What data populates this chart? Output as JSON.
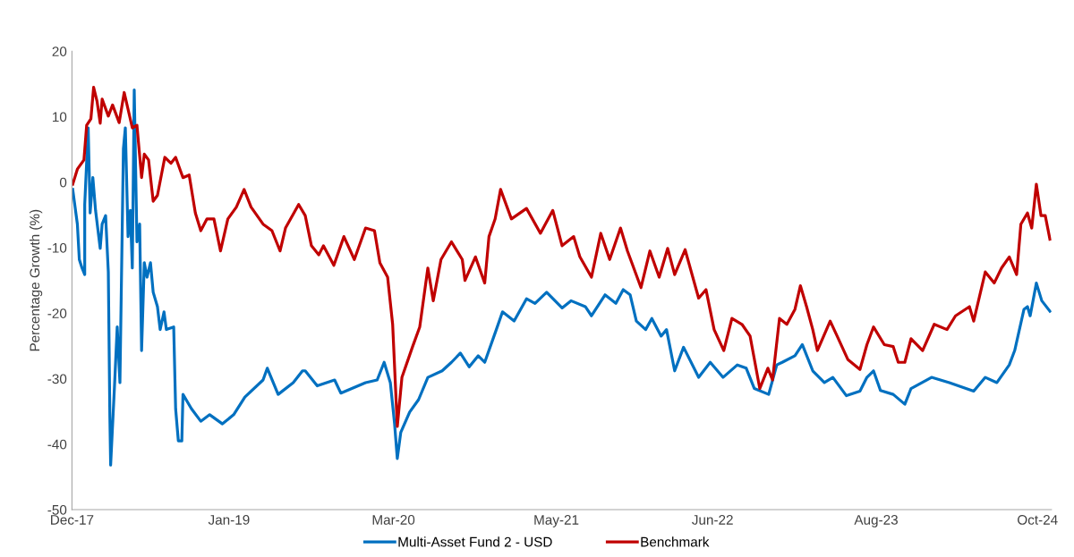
{
  "chart_data": {
    "type": "line",
    "ylabel": "Percentage Growth (%)",
    "ylim": [
      -50,
      20
    ],
    "yticks": [
      -50,
      -40,
      -30,
      -20,
      -10,
      0,
      10,
      20
    ],
    "xlim": [
      "2017-12-15",
      "2024-11-20"
    ],
    "xticks": [
      {
        "value": "2017-12-15",
        "label": "Dec-17"
      },
      {
        "value": "2019-01-25",
        "label": "Jan-19"
      },
      {
        "value": "2020-03-25",
        "label": "Mar-20"
      },
      {
        "value": "2021-05-20",
        "label": "May-21"
      },
      {
        "value": "2022-06-28",
        "label": "Jun-22"
      },
      {
        "value": "2023-08-25",
        "label": "Aug-23"
      },
      {
        "value": "2024-10-15",
        "label": "Oct-24"
      }
    ],
    "grid": false,
    "legend": "bottom",
    "line_style": "solid",
    "marker": "none",
    "series": [
      {
        "name": "Multi-Asset Fund 2 - USD",
        "color": "#0070c0",
        "x": [
          "2017-12-17",
          "2017-12-29",
          "2018-01-03",
          "2018-01-10",
          "2018-01-17",
          "2018-01-17",
          "2018-01-26",
          "2018-01-31",
          "2018-02-07",
          "2018-02-14",
          "2018-02-26",
          "2018-03-03",
          "2018-03-12",
          "2018-03-19",
          "2018-03-23",
          "2018-03-25",
          "2018-04-04",
          "2018-04-11",
          "2018-04-18",
          "2018-04-27",
          "2018-05-02",
          "2018-05-09",
          "2018-05-15",
          "2018-05-20",
          "2018-05-25",
          "2018-06-01",
          "2018-06-08",
          "2018-06-13",
          "2018-06-20",
          "2018-06-27",
          "2018-07-06",
          "2018-07-13",
          "2018-07-24",
          "2018-07-31",
          "2018-08-10",
          "2018-08-16",
          "2018-09-04",
          "2018-09-09",
          "2018-09-16",
          "2018-09-25",
          "2018-09-28",
          "2018-10-20",
          "2018-11-13",
          "2018-12-06",
          "2019-01-08",
          "2019-02-06",
          "2019-03-07",
          "2019-04-23",
          "2019-05-04",
          "2019-06-01",
          "2019-07-10",
          "2019-08-03",
          "2019-08-10",
          "2019-09-10",
          "2019-10-25",
          "2019-11-10",
          "2020-01-13",
          "2020-02-12",
          "2020-03-01",
          "2020-03-17",
          "2020-03-28",
          "2020-04-04",
          "2020-04-13",
          "2020-05-06",
          "2020-05-29",
          "2020-06-22",
          "2020-07-29",
          "2020-08-22",
          "2020-09-14",
          "2020-10-07",
          "2020-10-30",
          "2020-11-16",
          "2020-12-16",
          "2021-01-01",
          "2021-01-31",
          "2021-03-04",
          "2021-03-26",
          "2021-04-25",
          "2021-06-04",
          "2021-06-27",
          "2021-08-03",
          "2021-08-19",
          "2021-09-23",
          "2021-10-21",
          "2021-11-09",
          "2021-11-27",
          "2021-12-13",
          "2022-01-06",
          "2022-01-22",
          "2022-02-15",
          "2022-03-01",
          "2022-03-22",
          "2022-04-14",
          "2022-05-23",
          "2022-06-22",
          "2022-07-25",
          "2022-08-31",
          "2022-09-23",
          "2022-10-14",
          "2022-11-20",
          "2022-12-11",
          "2022-12-25",
          "2023-01-27",
          "2023-02-15",
          "2023-03-14",
          "2023-04-13",
          "2023-05-05",
          "2023-06-09",
          "2023-07-14",
          "2023-08-01",
          "2023-08-18",
          "2023-09-05",
          "2023-10-08",
          "2023-11-07",
          "2023-11-23",
          "2024-01-15",
          "2024-03-01",
          "2024-05-03",
          "2024-06-02",
          "2024-07-02",
          "2024-08-03",
          "2024-08-17",
          "2024-09-10",
          "2024-09-19",
          "2024-09-26",
          "2024-10-12",
          "2024-10-26",
          "2024-11-16"
        ],
        "values": [
          -1.1,
          -6.4,
          -11.8,
          -13.1,
          -14.1,
          -3.4,
          8.3,
          -4.7,
          0.7,
          -4.3,
          -10.1,
          -6.4,
          -5.1,
          -13.7,
          -35.9,
          -43.2,
          -31.1,
          -22.1,
          -30.6,
          5.1,
          8.3,
          -8.3,
          -4.3,
          -13.1,
          14.1,
          -9.1,
          -6.4,
          -25.7,
          -12.3,
          -14.5,
          -12.3,
          -16.8,
          -19.0,
          -22.5,
          -19.8,
          -22.5,
          -22.1,
          -34.6,
          -39.5,
          -39.5,
          -32.4,
          -34.6,
          -36.5,
          -35.5,
          -36.9,
          -35.5,
          -32.8,
          -30.2,
          -28.4,
          -32.4,
          -30.6,
          -28.8,
          -28.8,
          -31.1,
          -30.2,
          -32.2,
          -30.6,
          -30.2,
          -27.5,
          -30.6,
          -36.9,
          -42.2,
          -38.2,
          -35.1,
          -33.2,
          -29.8,
          -28.8,
          -27.5,
          -26.1,
          -28.2,
          -26.5,
          -27.5,
          -22.5,
          -19.8,
          -21.2,
          -17.8,
          -18.5,
          -16.8,
          -19.2,
          -18.1,
          -19.0,
          -20.4,
          -17.2,
          -18.5,
          -16.4,
          -17.2,
          -21.2,
          -22.5,
          -20.8,
          -23.5,
          -22.5,
          -28.8,
          -25.2,
          -29.8,
          -27.5,
          -29.8,
          -27.9,
          -28.4,
          -31.5,
          -32.4,
          -27.9,
          -27.5,
          -26.5,
          -24.8,
          -28.8,
          -30.6,
          -29.8,
          -32.6,
          -31.9,
          -29.8,
          -28.8,
          -31.8,
          -32.4,
          -33.9,
          -31.5,
          -29.8,
          -30.6,
          -31.9,
          -29.8,
          -30.6,
          -27.9,
          -25.7,
          -19.4,
          -19.0,
          -20.4,
          -15.4,
          -18.1,
          -19.7
        ]
      },
      {
        "name": "Benchmark",
        "color": "#c00000",
        "x": [
          "2017-12-17",
          "2017-12-29",
          "2018-01-15",
          "2018-01-22",
          "2018-02-02",
          "2018-02-09",
          "2018-02-18",
          "2018-02-26",
          "2018-03-03",
          "2018-03-19",
          "2018-03-30",
          "2018-04-16",
          "2018-04-29",
          "2018-05-20",
          "2018-06-01",
          "2018-06-13",
          "2018-06-20",
          "2018-07-01",
          "2018-07-13",
          "2018-07-24",
          "2018-08-12",
          "2018-08-28",
          "2018-09-09",
          "2018-09-28",
          "2018-10-14",
          "2018-10-30",
          "2018-11-13",
          "2018-11-29",
          "2018-12-17",
          "2019-01-03",
          "2019-01-22",
          "2019-02-13",
          "2019-03-05",
          "2019-03-23",
          "2019-04-23",
          "2019-05-16",
          "2019-06-06",
          "2019-06-20",
          "2019-07-24",
          "2019-08-10",
          "2019-08-26",
          "2019-09-14",
          "2019-09-26",
          "2019-10-23",
          "2019-11-18",
          "2019-12-15",
          "2020-01-13",
          "2020-02-05",
          "2020-02-19",
          "2020-03-10",
          "2020-03-23",
          "2020-04-04",
          "2020-04-16",
          "2020-05-13",
          "2020-06-01",
          "2020-06-22",
          "2020-07-06",
          "2020-07-26",
          "2020-08-22",
          "2020-09-19",
          "2020-09-26",
          "2020-10-23",
          "2020-11-16",
          "2020-11-27",
          "2020-12-13",
          "2020-12-27",
          "2021-01-24",
          "2021-03-04",
          "2021-04-09",
          "2021-05-11",
          "2021-06-04",
          "2021-07-04",
          "2021-07-20",
          "2021-08-19",
          "2021-09-12",
          "2021-10-05",
          "2021-11-02",
          "2021-11-20",
          "2021-12-25",
          "2022-01-17",
          "2022-02-10",
          "2022-03-04",
          "2022-03-22",
          "2022-04-18",
          "2022-05-23",
          "2022-06-11",
          "2022-07-02",
          "2022-07-27",
          "2022-08-17",
          "2022-09-12",
          "2022-10-03",
          "2022-10-28",
          "2022-11-18",
          "2022-11-30",
          "2022-12-18",
          "2023-01-06",
          "2023-01-27",
          "2023-02-10",
          "2023-02-26",
          "2023-03-14",
          "2023-03-26",
          "2023-04-28",
          "2023-05-16",
          "2023-06-13",
          "2023-07-14",
          "2023-08-01",
          "2023-08-18",
          "2023-09-15",
          "2023-10-08",
          "2023-10-21",
          "2023-11-07",
          "2023-11-23",
          "2023-12-23",
          "2024-01-22",
          "2024-02-24",
          "2024-03-17",
          "2024-04-22",
          "2024-05-03",
          "2024-06-02",
          "2024-06-25",
          "2024-07-14",
          "2024-08-03",
          "2024-08-22",
          "2024-09-02",
          "2024-09-19",
          "2024-09-30",
          "2024-10-12",
          "2024-10-24",
          "2024-11-04",
          "2024-11-16"
        ],
        "values": [
          -0.3,
          2.0,
          3.4,
          8.7,
          9.7,
          14.5,
          12.3,
          9.0,
          12.7,
          10.1,
          11.8,
          9.1,
          13.7,
          8.3,
          8.7,
          0.7,
          4.3,
          3.4,
          -2.9,
          -2.0,
          3.8,
          2.9,
          3.8,
          0.7,
          1.1,
          -4.7,
          -7.4,
          -5.6,
          -5.6,
          -10.5,
          -5.6,
          -3.8,
          -1.1,
          -3.8,
          -6.4,
          -7.4,
          -10.5,
          -7.0,
          -3.4,
          -5.1,
          -9.7,
          -11.1,
          -9.7,
          -12.7,
          -8.3,
          -11.8,
          -7.0,
          -7.4,
          -12.3,
          -14.5,
          -21.7,
          -37.3,
          -29.8,
          -25.2,
          -22.1,
          -13.1,
          -18.1,
          -11.8,
          -9.1,
          -11.8,
          -15.0,
          -11.4,
          -15.4,
          -8.3,
          -5.6,
          -1.1,
          -5.6,
          -4.0,
          -7.8,
          -4.3,
          -9.7,
          -8.3,
          -11.4,
          -14.5,
          -7.8,
          -11.8,
          -7.0,
          -10.5,
          -16.1,
          -10.5,
          -14.5,
          -10.1,
          -14.1,
          -10.3,
          -17.7,
          -16.4,
          -22.5,
          -25.7,
          -20.8,
          -21.7,
          -23.5,
          -31.5,
          -28.4,
          -30.2,
          -20.8,
          -21.7,
          -19.4,
          -15.8,
          -19.0,
          -22.5,
          -25.7,
          -21.2,
          -23.5,
          -27.1,
          -28.6,
          -24.8,
          -22.1,
          -24.8,
          -25.1,
          -27.5,
          -27.5,
          -23.9,
          -25.7,
          -21.7,
          -22.5,
          -20.4,
          -19.0,
          -21.2,
          -13.7,
          -15.4,
          -13.1,
          -11.4,
          -14.1,
          -6.4,
          -4.7,
          -7.0,
          -0.3,
          -5.1,
          -5.1,
          -8.7
        ]
      }
    ]
  }
}
